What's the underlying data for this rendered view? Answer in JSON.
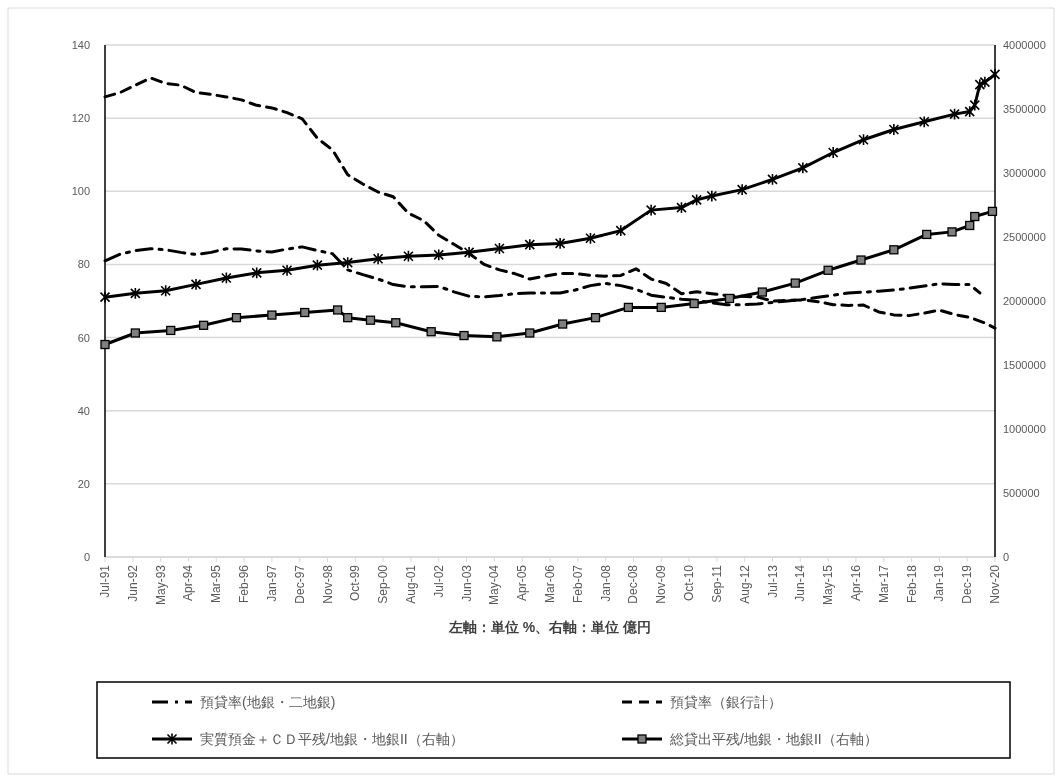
{
  "chart_data": {
    "type": "line",
    "xlabel": "左軸：単位 %、右軸：単位 億円",
    "xlim": [
      "1991-07",
      "2020-11"
    ],
    "xticks": [
      {
        "value": "1991-07",
        "label": "Jul-91"
      },
      {
        "value": "1992-06",
        "label": "Jun-92"
      },
      {
        "value": "1993-05",
        "label": "May-93"
      },
      {
        "value": "1994-04",
        "label": "Apr-94"
      },
      {
        "value": "1995-03",
        "label": "Mar-95"
      },
      {
        "value": "1996-02",
        "label": "Feb-96"
      },
      {
        "value": "1997-01",
        "label": "Jan-97"
      },
      {
        "value": "1997-12",
        "label": "Dec-97"
      },
      {
        "value": "1998-11",
        "label": "Nov-98"
      },
      {
        "value": "1999-10",
        "label": "Oct-99"
      },
      {
        "value": "2000-09",
        "label": "Sep-00"
      },
      {
        "value": "2001-08",
        "label": "Aug-01"
      },
      {
        "value": "2002-07",
        "label": "Jul-02"
      },
      {
        "value": "2003-06",
        "label": "Jun-03"
      },
      {
        "value": "2004-05",
        "label": "May-04"
      },
      {
        "value": "2005-04",
        "label": "Apr-05"
      },
      {
        "value": "2006-03",
        "label": "Mar-06"
      },
      {
        "value": "2007-02",
        "label": "Feb-07"
      },
      {
        "value": "2008-01",
        "label": "Jan-08"
      },
      {
        "value": "2008-12",
        "label": "Dec-08"
      },
      {
        "value": "2009-11",
        "label": "Nov-09"
      },
      {
        "value": "2010-10",
        "label": "Oct-10"
      },
      {
        "value": "2011-09",
        "label": "Sep-11"
      },
      {
        "value": "2012-08",
        "label": "Aug-12"
      },
      {
        "value": "2013-07",
        "label": "Jul-13"
      },
      {
        "value": "2014-06",
        "label": "Jun-14"
      },
      {
        "value": "2015-05",
        "label": "May-15"
      },
      {
        "value": "2016-04",
        "label": "Apr-16"
      },
      {
        "value": "2017-03",
        "label": "Mar-17"
      },
      {
        "value": "2018-02",
        "label": "Feb-18"
      },
      {
        "value": "2019-01",
        "label": "Jan-19"
      },
      {
        "value": "2019-12",
        "label": "Dec-19"
      },
      {
        "value": "2020-11",
        "label": "Nov-20"
      }
    ],
    "ylim": [
      0,
      140
    ],
    "yticks": [
      0,
      20,
      40,
      60,
      80,
      100,
      120,
      140
    ],
    "y2lim": [
      0,
      4000000
    ],
    "y2ticks": [
      0,
      500000,
      1000000,
      1500000,
      2000000,
      2500000,
      3000000,
      3500000,
      4000000
    ],
    "grid": "y",
    "legend": "bottom",
    "series": [
      {
        "name": "預貸率(地銀・二地銀)",
        "color": "#000000",
        "line_style": "dashdot",
        "marker": "none",
        "x": [
          "1991-07",
          "1992-01",
          "1992-07",
          "1993-01",
          "1993-07",
          "1994-01",
          "1994-07",
          "1995-01",
          "1995-07",
          "1996-01",
          "1996-07",
          "1997-01",
          "1997-07",
          "1998-01",
          "1998-07",
          "1999-01",
          "1999-07",
          "2000-01",
          "2000-07",
          "2001-01",
          "2001-07",
          "2002-01",
          "2002-07",
          "2003-01",
          "2003-07",
          "2004-01",
          "2004-07",
          "2005-01",
          "2005-07",
          "2006-01",
          "2006-07",
          "2007-01",
          "2007-07",
          "2008-01",
          "2008-07",
          "2009-01",
          "2009-07",
          "2010-01",
          "2010-07",
          "2011-01",
          "2011-07",
          "2012-01",
          "2012-07",
          "2013-01",
          "2013-07",
          "2014-01",
          "2014-07",
          "2015-01",
          "2015-07",
          "2016-01",
          "2016-07",
          "2017-01",
          "2017-07",
          "2018-01",
          "2018-07",
          "2019-01",
          "2019-07",
          "2020-01",
          "2020-05"
        ],
        "values": [
          81,
          82.8,
          83.8,
          84.3,
          84,
          83.3,
          82.7,
          83.3,
          84.3,
          84.2,
          83.7,
          83.4,
          84.2,
          84.8,
          83.8,
          82.9,
          78.5,
          77.2,
          76,
          74.5,
          73.9,
          73.9,
          74,
          72.5,
          71.3,
          71.1,
          71.5,
          72,
          72.2,
          72.2,
          72.2,
          73,
          74.2,
          74.8,
          74.2,
          73.2,
          71.6,
          71,
          70.5,
          70.2,
          69.5,
          69,
          69,
          69.2,
          69.6,
          70,
          70.4,
          71,
          71.6,
          72.2,
          72.4,
          72.7,
          73,
          73.5,
          74.1,
          74.7,
          74.5,
          74.5,
          72.2
        ]
      },
      {
        "name": "預貸率（銀行計）",
        "color": "#000000",
        "line_style": "dashed",
        "marker": "none",
        "x": [
          "1991-07",
          "1992-01",
          "1992-07",
          "1993-01",
          "1993-07",
          "1994-01",
          "1994-07",
          "1995-01",
          "1995-07",
          "1996-01",
          "1996-07",
          "1997-01",
          "1997-07",
          "1998-01",
          "1998-07",
          "1999-01",
          "1999-07",
          "2000-01",
          "2000-07",
          "2001-01",
          "2001-07",
          "2002-01",
          "2002-07",
          "2003-01",
          "2003-07",
          "2004-01",
          "2004-07",
          "2005-01",
          "2005-07",
          "2006-01",
          "2006-07",
          "2007-01",
          "2007-07",
          "2008-01",
          "2008-07",
          "2009-01",
          "2009-07",
          "2010-01",
          "2010-07",
          "2011-01",
          "2011-07",
          "2012-01",
          "2012-07",
          "2013-01",
          "2013-07",
          "2014-01",
          "2014-07",
          "2015-01",
          "2015-07",
          "2016-01",
          "2016-07",
          "2017-01",
          "2017-07",
          "2018-01",
          "2018-07",
          "2019-01",
          "2019-07",
          "2020-01",
          "2020-07",
          "2020-11"
        ],
        "values": [
          125.8,
          127,
          129,
          131,
          129.5,
          129,
          127,
          126.5,
          125.8,
          125,
          123.5,
          122.8,
          121.5,
          119.8,
          114.5,
          111.3,
          104.5,
          102,
          99.8,
          98.5,
          94,
          92,
          88,
          85.5,
          83,
          80,
          78.5,
          77.5,
          76,
          76.8,
          77.5,
          77.5,
          77,
          76.8,
          77,
          78.8,
          76,
          74.8,
          72,
          72.5,
          72,
          71.5,
          71.3,
          71.1,
          70,
          70.2,
          70.3,
          69.8,
          69,
          68.8,
          68.9,
          67,
          66.2,
          66,
          66.7,
          67.5,
          66.3,
          65.5,
          64,
          62.6
        ]
      },
      {
        "name": "実質預金＋ＣＤ平残/地銀・地銀II（右軸）",
        "color": "#000000",
        "axis": "y2",
        "line_style": "solid",
        "marker": "cross",
        "x": [
          "1991-07",
          "1992-07",
          "1993-07",
          "1994-07",
          "1995-07",
          "1996-07",
          "1997-07",
          "1998-07",
          "1999-07",
          "2000-07",
          "2001-07",
          "2002-07",
          "2003-07",
          "2004-07",
          "2005-07",
          "2006-07",
          "2007-07",
          "2008-07",
          "2009-07",
          "2010-07",
          "2011-01",
          "2011-07",
          "2012-07",
          "2013-07",
          "2014-07",
          "2015-07",
          "2016-07",
          "2017-07",
          "2018-07",
          "2019-07",
          "2020-01",
          "2020-03",
          "2020-05",
          "2020-07",
          "2020-11"
        ],
        "values": [
          2030000,
          2060000,
          2080000,
          2130000,
          2180000,
          2220000,
          2240000,
          2280000,
          2300000,
          2330000,
          2350000,
          2360000,
          2380000,
          2410000,
          2440000,
          2450000,
          2490000,
          2550000,
          2710000,
          2730000,
          2790000,
          2820000,
          2870000,
          2950000,
          3040000,
          3160000,
          3260000,
          3340000,
          3400000,
          3460000,
          3480000,
          3530000,
          3690000,
          3710000,
          3770000
        ]
      },
      {
        "name": "総貸出平残/地銀・地銀II（右軸）",
        "color": "#000000",
        "axis": "y2",
        "line_style": "solid",
        "marker": "square",
        "x": [
          "1991-07",
          "1992-07",
          "1993-09",
          "1994-10",
          "1995-11",
          "1997-01",
          "1998-02",
          "1999-03",
          "1999-07",
          "2000-04",
          "2001-02",
          "2002-04",
          "2003-05",
          "2004-06",
          "2005-07",
          "2006-08",
          "2007-09",
          "2008-10",
          "2009-11",
          "2010-12",
          "2012-02",
          "2013-03",
          "2014-04",
          "2015-05",
          "2016-06",
          "2017-07",
          "2018-08",
          "2019-06",
          "2020-01",
          "2020-03",
          "2020-10"
        ],
        "values": [
          1660000,
          1750000,
          1770000,
          1810000,
          1870000,
          1890000,
          1910000,
          1930000,
          1870000,
          1850000,
          1830000,
          1760000,
          1730000,
          1720000,
          1750000,
          1820000,
          1870000,
          1950000,
          1950000,
          1980000,
          2020000,
          2070000,
          2140000,
          2240000,
          2320000,
          2400000,
          2520000,
          2540000,
          2590000,
          2660000,
          2700000
        ]
      }
    ]
  }
}
